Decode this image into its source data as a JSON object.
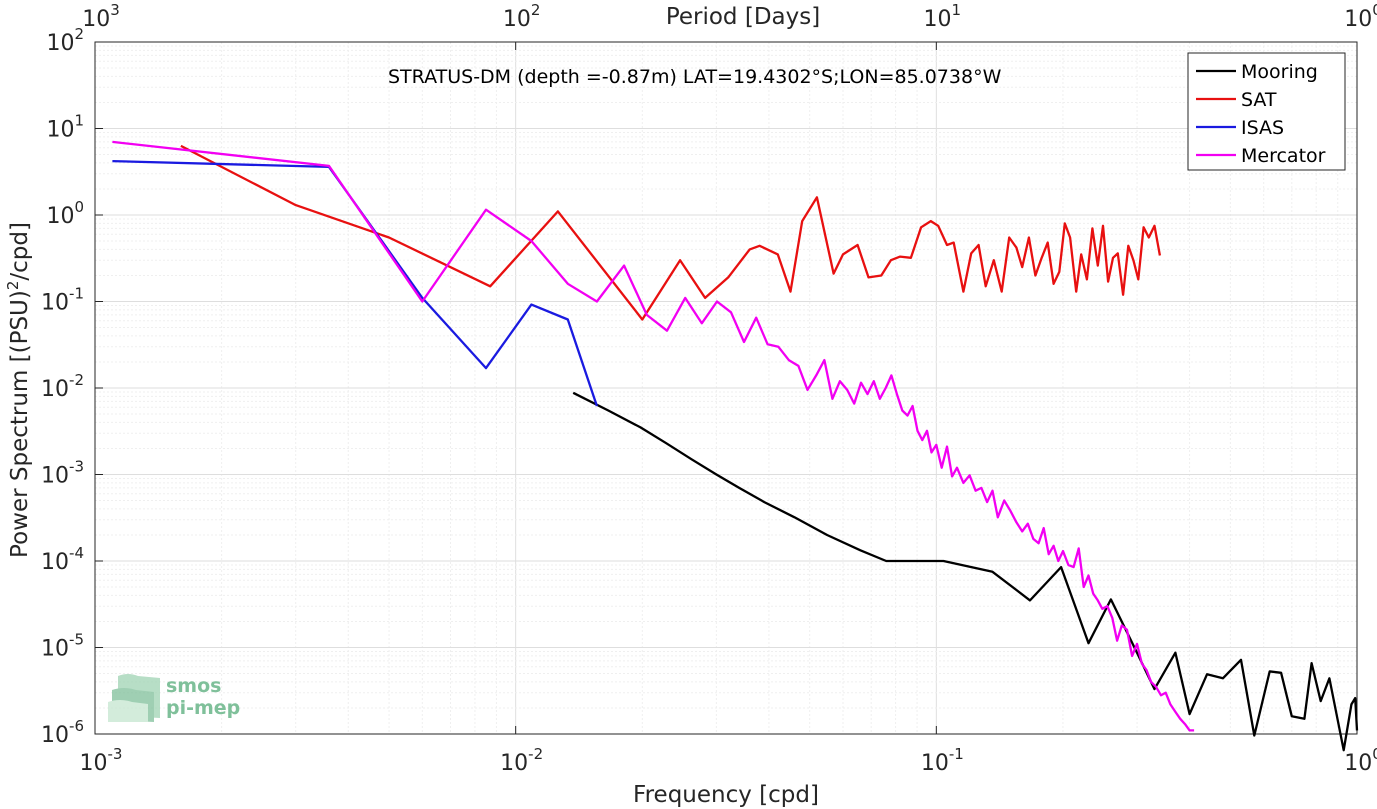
{
  "chart_data": {
    "type": "line",
    "title": "",
    "annotation": "STRATUS-DM (depth =-0.87m) LAT=19.4302°S;LON=85.0738°W",
    "xlabel": "Frequency [cpd]",
    "ylabel_parts": [
      "Power Spectrum [(PSU)",
      "2",
      "/cpd]"
    ],
    "top_xlabel": "Period [Days]",
    "x_scale": "log",
    "y_scale": "log",
    "xlim": [
      0.001,
      1
    ],
    "ylim": [
      1e-06,
      100
    ],
    "grid": true,
    "legend_position": "top-right",
    "x_ticks": [
      {
        "base": "10",
        "exp": "-3"
      },
      {
        "base": "10",
        "exp": "-2"
      },
      {
        "base": "10",
        "exp": "-1"
      },
      {
        "base": "10",
        "exp": "0"
      }
    ],
    "top_ticks": [
      {
        "base": "10",
        "exp": "3"
      },
      {
        "base": "10",
        "exp": "2"
      },
      {
        "base": "10",
        "exp": "1"
      },
      {
        "base": "10",
        "exp": "0"
      }
    ],
    "y_ticks": [
      {
        "base": "10",
        "exp": "-6"
      },
      {
        "base": "10",
        "exp": "-5"
      },
      {
        "base": "10",
        "exp": "-4"
      },
      {
        "base": "10",
        "exp": "-3"
      },
      {
        "base": "10",
        "exp": "-2"
      },
      {
        "base": "10",
        "exp": "-1"
      },
      {
        "base": "10",
        "exp": "0"
      },
      {
        "base": "10",
        "exp": "1"
      },
      {
        "base": "10",
        "exp": "2"
      }
    ],
    "series": [
      {
        "name": "Mooring",
        "color": "#000000",
        "x": [
          0.0137,
          0.0166,
          0.0198,
          0.0228,
          0.0262,
          0.03,
          0.034,
          0.039,
          0.046,
          0.055,
          0.066,
          0.076,
          0.088,
          0.104,
          0.136,
          0.167,
          0.198,
          0.23,
          0.26,
          0.3,
          0.33,
          0.37,
          0.4,
          0.44,
          0.48,
          0.53,
          0.57,
          0.62,
          0.66,
          0.7,
          0.75,
          0.78,
          0.82,
          0.86,
          0.93,
          0.97,
          0.99,
          1.0
        ],
        "y": [
          0.0088,
          0.0055,
          0.0035,
          0.0023,
          0.0015,
          0.001,
          0.0007,
          0.00048,
          0.00032,
          0.0002,
          0.000133,
          0.0001,
          0.0001,
          0.0001,
          7.5e-05,
          3.5e-05,
          8.5e-05,
          1.12e-05,
          3.6e-05,
          8.7e-06,
          3.3e-06,
          8.7e-06,
          1.7e-06,
          4.9e-06,
          4.4e-06,
          7.2e-06,
          9.6e-07,
          5.3e-06,
          5.1e-06,
          1.6e-06,
          1.5e-06,
          6.6e-06,
          2.4e-06,
          4.4e-06,
          6.5e-07,
          2.2e-06,
          2.6e-06,
          1.1e-06
        ]
      },
      {
        "name": "SAT",
        "color": "#e81010",
        "x": [
          0.0016,
          0.003,
          0.005,
          0.0087,
          0.0126,
          0.02,
          0.0246,
          0.0282,
          0.032,
          0.036,
          0.038,
          0.042,
          0.045,
          0.048,
          0.052,
          0.057,
          0.06,
          0.065,
          0.069,
          0.074,
          0.078,
          0.082,
          0.087,
          0.092,
          0.097,
          0.101,
          0.106,
          0.11,
          0.116,
          0.121,
          0.126,
          0.131,
          0.137,
          0.143,
          0.149,
          0.155,
          0.16,
          0.166,
          0.172,
          0.178,
          0.184,
          0.19,
          0.196,
          0.202,
          0.208,
          0.215,
          0.221,
          0.228,
          0.235,
          0.242,
          0.249,
          0.256,
          0.263,
          0.27,
          0.278,
          0.286,
          0.294,
          0.302,
          0.311,
          0.32,
          0.33,
          0.34
        ],
        "y": [
          6.3,
          1.3,
          0.55,
          0.15,
          1.1,
          0.062,
          0.3,
          0.11,
          0.19,
          0.4,
          0.44,
          0.35,
          0.13,
          0.85,
          1.6,
          0.21,
          0.35,
          0.45,
          0.19,
          0.2,
          0.3,
          0.33,
          0.32,
          0.72,
          0.85,
          0.75,
          0.45,
          0.48,
          0.13,
          0.36,
          0.45,
          0.15,
          0.3,
          0.13,
          0.55,
          0.42,
          0.25,
          0.55,
          0.2,
          0.32,
          0.48,
          0.16,
          0.22,
          0.8,
          0.55,
          0.13,
          0.35,
          0.18,
          0.7,
          0.26,
          0.75,
          0.17,
          0.32,
          0.36,
          0.12,
          0.44,
          0.3,
          0.18,
          0.72,
          0.55,
          0.75,
          0.34
        ]
      },
      {
        "name": "ISAS",
        "color": "#1a1ae0",
        "x": [
          0.0011,
          0.0036,
          0.006,
          0.0085,
          0.0109,
          0.0133,
          0.0156
        ],
        "y": [
          4.2,
          3.6,
          0.11,
          0.017,
          0.092,
          0.062,
          0.0062
        ]
      },
      {
        "name": "Mercator",
        "color": "#f200f2",
        "x": [
          0.0011,
          0.0036,
          0.006,
          0.0085,
          0.0109,
          0.0133,
          0.0156,
          0.0181,
          0.0205,
          0.0229,
          0.0253,
          0.0277,
          0.0301,
          0.0325,
          0.0349,
          0.0373,
          0.0397,
          0.0421,
          0.0446,
          0.047,
          0.0494,
          0.0518,
          0.0542,
          0.0566,
          0.059,
          0.0614,
          0.0638,
          0.0662,
          0.0686,
          0.071,
          0.0734,
          0.0758,
          0.0782,
          0.0806,
          0.083,
          0.0854,
          0.0878,
          0.0902,
          0.0926,
          0.095,
          0.0974,
          0.1,
          0.103,
          0.106,
          0.109,
          0.112,
          0.116,
          0.12,
          0.124,
          0.128,
          0.132,
          0.136,
          0.14,
          0.145,
          0.15,
          0.155,
          0.16,
          0.165,
          0.17,
          0.175,
          0.18,
          0.185,
          0.19,
          0.195,
          0.2,
          0.206,
          0.212,
          0.218,
          0.224,
          0.23,
          0.236,
          0.242,
          0.248,
          0.255,
          0.262,
          0.269,
          0.276,
          0.284,
          0.292,
          0.3,
          0.308,
          0.316,
          0.324,
          0.333,
          0.342,
          0.351,
          0.36,
          0.37,
          0.38,
          0.39,
          0.4,
          0.41
        ],
        "y": [
          7,
          3.7,
          0.1,
          1.15,
          0.5,
          0.16,
          0.1,
          0.26,
          0.07,
          0.046,
          0.11,
          0.056,
          0.1,
          0.075,
          0.034,
          0.065,
          0.032,
          0.03,
          0.021,
          0.018,
          0.0095,
          0.014,
          0.021,
          0.0075,
          0.012,
          0.0095,
          0.0066,
          0.0115,
          0.0085,
          0.012,
          0.0075,
          0.01,
          0.014,
          0.0085,
          0.0055,
          0.0048,
          0.0062,
          0.0032,
          0.0025,
          0.0032,
          0.0018,
          0.0022,
          0.0012,
          0.0021,
          0.00095,
          0.0012,
          0.0008,
          0.00098,
          0.00065,
          0.0007,
          0.00048,
          0.00065,
          0.00032,
          0.0005,
          0.00038,
          0.00028,
          0.00022,
          0.00027,
          0.00018,
          0.00016,
          0.00024,
          0.00012,
          0.00015,
          0.0001,
          0.00013,
          9e-05,
          8.5e-05,
          0.00014,
          5e-05,
          6.8e-05,
          4.2e-05,
          3.5e-05,
          2.8e-05,
          3e-05,
          2.2e-05,
          1.2e-05,
          1.8e-05,
          1.6e-05,
          8e-06,
          1.1e-05,
          6.5e-06,
          5.5e-06,
          4e-06,
          3.5e-06,
          2.8e-06,
          3e-06,
          2.2e-06,
          1.8e-06,
          1.5e-06,
          1.3e-06,
          1.1e-06,
          1.1e-06
        ]
      }
    ]
  },
  "logo": {
    "line1": "smos",
    "line2": "pi-mep"
  }
}
